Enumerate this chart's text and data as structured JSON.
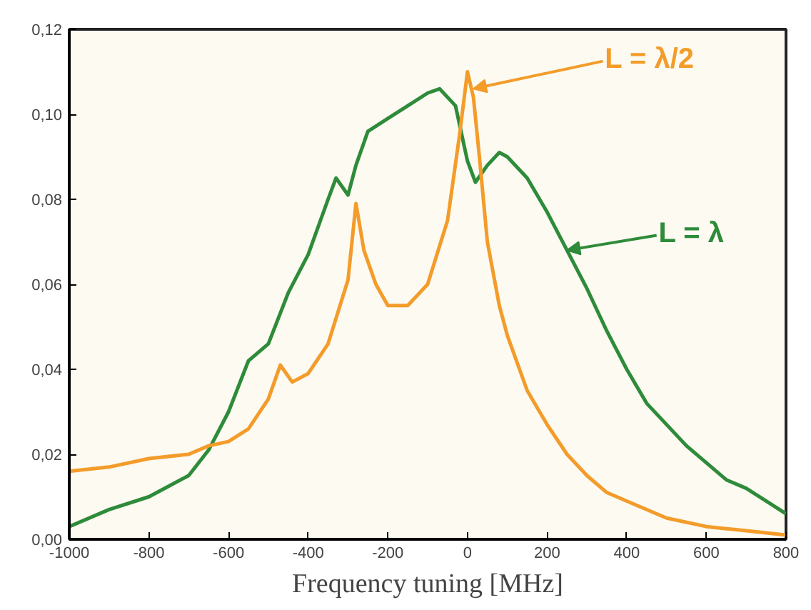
{
  "chart_data": {
    "type": "line",
    "xlabel": "Frequency tuning [MHz]",
    "xlim": [
      -1000,
      800
    ],
    "xticks": [
      -1000,
      -800,
      -600,
      -400,
      -200,
      0,
      200,
      400,
      600,
      800
    ],
    "ylim": [
      0,
      0.12
    ],
    "yticks": [
      {
        "value": 0,
        "label": "0,00"
      },
      {
        "value": 0.02,
        "label": "0,02"
      },
      {
        "value": 0.04,
        "label": "0,04"
      },
      {
        "value": 0.06,
        "label": "0,06"
      },
      {
        "value": 0.08,
        "label": "0,08"
      },
      {
        "value": 0.1,
        "label": "0,10"
      },
      {
        "value": 0.12,
        "label": "0,12"
      }
    ],
    "grid": false,
    "series": [
      {
        "color": "#2e8b3a",
        "x": [
          -1000,
          -900,
          -800,
          -700,
          -650,
          -600,
          -550,
          -500,
          -450,
          -400,
          -350,
          -330,
          -300,
          -280,
          -250,
          -200,
          -150,
          -100,
          -70,
          -30,
          0,
          20,
          50,
          80,
          100,
          150,
          200,
          250,
          300,
          350,
          400,
          450,
          500,
          550,
          600,
          650,
          700,
          750,
          800
        ],
        "values": [
          0.003,
          0.007,
          0.01,
          0.015,
          0.021,
          0.03,
          0.042,
          0.046,
          0.058,
          0.067,
          0.08,
          0.085,
          0.081,
          0.088,
          0.096,
          0.099,
          0.102,
          0.105,
          0.106,
          0.102,
          0.089,
          0.084,
          0.088,
          0.091,
          0.09,
          0.085,
          0.077,
          0.068,
          0.059,
          0.049,
          0.04,
          0.032,
          0.027,
          0.022,
          0.018,
          0.014,
          0.012,
          0.009,
          0.006
        ]
      },
      {
        "color": "#f39c2a",
        "x": [
          -1000,
          -900,
          -800,
          -700,
          -650,
          -600,
          -550,
          -500,
          -470,
          -440,
          -400,
          -350,
          -300,
          -280,
          -260,
          -230,
          -200,
          -150,
          -100,
          -50,
          -20,
          0,
          15,
          30,
          50,
          80,
          100,
          150,
          200,
          250,
          300,
          350,
          400,
          500,
          600,
          700,
          800
        ],
        "values": [
          0.016,
          0.017,
          0.019,
          0.02,
          0.022,
          0.023,
          0.026,
          0.033,
          0.041,
          0.037,
          0.039,
          0.046,
          0.061,
          0.079,
          0.068,
          0.06,
          0.055,
          0.055,
          0.06,
          0.075,
          0.095,
          0.11,
          0.104,
          0.09,
          0.07,
          0.055,
          0.048,
          0.035,
          0.027,
          0.02,
          0.015,
          0.011,
          0.009,
          0.005,
          0.003,
          0.002,
          0.001
        ]
      }
    ],
    "annotations": [
      {
        "text": "L = λ/2",
        "x": 15,
        "y": 0.106
      },
      {
        "text": "L = λ",
        "x": 250,
        "y": 0.068
      }
    ]
  }
}
